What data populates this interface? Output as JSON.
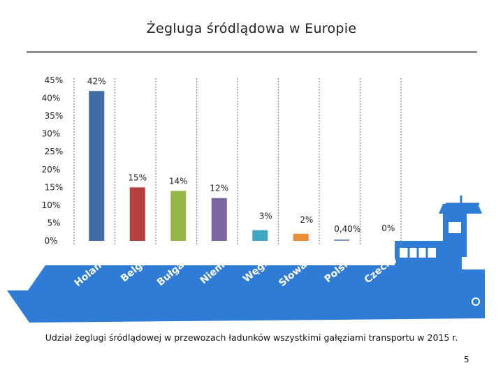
{
  "title": "Żegluga śródlądowa w Europie",
  "caption": "Udział żeglugi śródlądowej w przewozach ładunków wszystkimi gałęziami transportu w 2015 r.",
  "page_number": "5",
  "colors": {
    "ship_blue": "#2f7cd6",
    "hull_dark": "#c9d4e2",
    "water": "#2f7cd6",
    "grid": "#8a8a8a"
  },
  "chart_data": {
    "type": "bar",
    "title": "Żegluga śródlądowa w Europie",
    "xlabel": "",
    "ylabel": "",
    "ylim": [
      0,
      45
    ],
    "yticks": [
      0,
      5,
      10,
      15,
      20,
      25,
      30,
      35,
      40,
      45
    ],
    "ytick_labels": [
      "0%",
      "5%",
      "10%",
      "15%",
      "20%",
      "25%",
      "30%",
      "35%",
      "40%",
      "45%"
    ],
    "categories": [
      "Holandia",
      "Belgia",
      "Bułgaria",
      "Niemcy",
      "Węgry",
      "Słowacja",
      "Polska",
      "Czechy"
    ],
    "values": [
      42,
      15,
      14,
      12,
      3,
      2,
      0.4,
      0
    ],
    "data_labels": [
      "42%",
      "15%",
      "14%",
      "12%",
      "3%",
      "2%",
      "0,40%",
      "0%"
    ],
    "colors": [
      "#3f6ea7",
      "#b8403c",
      "#97b64a",
      "#7b64a2",
      "#3fa7c1",
      "#e98f3a",
      "#7f97c6",
      "#c76a68"
    ],
    "grid": true,
    "legend": "none"
  }
}
